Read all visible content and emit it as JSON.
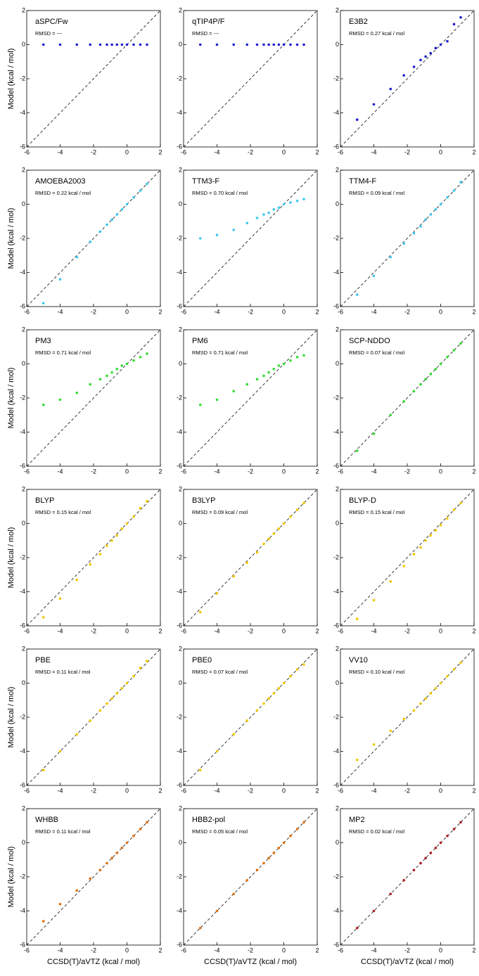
{
  "chart_data": [
    {
      "type": "scatter",
      "title": "aSPC/Fw",
      "annotation": "RMSD = ---",
      "color": "#1e1ed2",
      "y_label": "Model (kcal / mol)",
      "x": [
        -5,
        -4,
        -3,
        -2.2,
        -1.6,
        -1.2,
        -0.9,
        -0.6,
        -0.3,
        0,
        0.4,
        0.8,
        1.2
      ],
      "y": [
        0,
        0,
        0,
        0,
        0,
        0,
        0,
        0,
        0,
        0,
        0,
        0,
        0
      ],
      "xlim": [
        -6,
        2
      ],
      "ylim": [
        -6,
        2
      ],
      "xticks": [
        -6,
        -4,
        -2,
        0,
        2
      ],
      "yticks": [
        -6,
        -4,
        -2,
        0,
        2
      ]
    },
    {
      "type": "scatter",
      "title": "qTIP4P/F",
      "annotation": "RMSD = ---",
      "color": "#1e1ed2",
      "x": [
        -5,
        -4,
        -3,
        -2.2,
        -1.6,
        -1.2,
        -0.9,
        -0.6,
        -0.3,
        0,
        0.4,
        0.8,
        1.2
      ],
      "y": [
        0,
        0,
        0,
        0,
        0,
        0,
        0,
        0,
        0,
        0,
        0,
        0,
        0
      ],
      "xlim": [
        -6,
        2
      ],
      "ylim": [
        -6,
        2
      ],
      "xticks": [
        -6,
        -4,
        -2,
        0,
        2
      ],
      "yticks": [
        -6,
        -4,
        -2,
        0,
        2
      ]
    },
    {
      "type": "scatter",
      "title": "E3B2",
      "annotation": "RMSD = 0.27 kcal / mol",
      "color": "#1e1ed2",
      "x": [
        -5,
        -4,
        -3,
        -2.2,
        -1.6,
        -1.2,
        -0.9,
        -0.6,
        -0.3,
        0,
        0.4,
        0.8,
        1.2
      ],
      "y": [
        -4.4,
        -3.5,
        -2.6,
        -1.8,
        -1.3,
        -0.9,
        -0.7,
        -0.5,
        -0.2,
        0,
        0.2,
        1.2,
        1.6
      ],
      "xlim": [
        -6,
        2
      ],
      "ylim": [
        -6,
        2
      ],
      "xticks": [
        -6,
        -4,
        -2,
        0,
        2
      ],
      "yticks": [
        -6,
        -4,
        -2,
        0,
        2
      ]
    },
    {
      "type": "scatter",
      "title": "AMOEBA2003",
      "annotation": "RMSD = 0.22 kcal / mol",
      "color": "#3cc8f0",
      "y_label": "Model (kcal / mol)",
      "x": [
        -5,
        -4,
        -3,
        -2.2,
        -1.6,
        -1.2,
        -0.9,
        -0.6,
        -0.3,
        0,
        0.4,
        0.8,
        1.2
      ],
      "y": [
        -5.8,
        -4.4,
        -3.1,
        -2.2,
        -1.6,
        -1.2,
        -0.9,
        -0.6,
        -0.3,
        0,
        0.4,
        0.8,
        1.2
      ],
      "xlim": [
        -6,
        2
      ],
      "ylim": [
        -6,
        2
      ],
      "xticks": [
        -6,
        -4,
        -2,
        0,
        2
      ],
      "yticks": [
        -6,
        -4,
        -2,
        0,
        2
      ]
    },
    {
      "type": "scatter",
      "title": "TTM3-F",
      "annotation": "RMSD = 0.70 kcal / mol",
      "color": "#3cc8f0",
      "x": [
        -5,
        -4,
        -3,
        -2.2,
        -1.6,
        -1.2,
        -0.9,
        -0.6,
        -0.3,
        0,
        0.4,
        0.8,
        1.2
      ],
      "y": [
        -2,
        -1.8,
        -1.5,
        -1.1,
        -0.8,
        -0.6,
        -0.5,
        -0.3,
        -0.2,
        0,
        0.1,
        0.2,
        0.3
      ],
      "xlim": [
        -6,
        2
      ],
      "ylim": [
        -6,
        2
      ],
      "xticks": [
        -6,
        -4,
        -2,
        0,
        2
      ],
      "yticks": [
        -6,
        -4,
        -2,
        0,
        2
      ]
    },
    {
      "type": "scatter",
      "title": "TTM4-F",
      "annotation": "RMSD = 0.09 kcal / mol",
      "color": "#3cc8f0",
      "x": [
        -5,
        -4,
        -3,
        -2.2,
        -1.6,
        -1.2,
        -0.9,
        -0.6,
        -0.3,
        0,
        0.4,
        0.8,
        1.2
      ],
      "y": [
        -5.3,
        -4.2,
        -3.1,
        -2.3,
        -1.7,
        -1.3,
        -0.9,
        -0.6,
        -0.3,
        0,
        0.4,
        0.8,
        1.3
      ],
      "xlim": [
        -6,
        2
      ],
      "ylim": [
        -6,
        2
      ],
      "xticks": [
        -6,
        -4,
        -2,
        0,
        2
      ],
      "yticks": [
        -6,
        -4,
        -2,
        0,
        2
      ]
    },
    {
      "type": "scatter",
      "title": "PM3",
      "annotation": "RMSD = 0.71 kcal / mol",
      "color": "#33dd33",
      "y_label": "Model (kcal / mol)",
      "x": [
        -5,
        -4,
        -3,
        -2.2,
        -1.6,
        -1.2,
        -0.9,
        -0.6,
        -0.3,
        0,
        0.4,
        0.8,
        1.2
      ],
      "y": [
        -2.4,
        -2.1,
        -1.7,
        -1.2,
        -0.9,
        -0.7,
        -0.5,
        -0.3,
        -0.1,
        0,
        0.2,
        0.4,
        0.6
      ],
      "xlim": [
        -6,
        2
      ],
      "ylim": [
        -6,
        2
      ],
      "xticks": [
        -6,
        -4,
        -2,
        0,
        2
      ],
      "yticks": [
        -6,
        -4,
        -2,
        0,
        2
      ]
    },
    {
      "type": "scatter",
      "title": "PM6",
      "annotation": "RMSD = 0.71 kcal / mol",
      "color": "#33dd33",
      "x": [
        -5,
        -4,
        -3,
        -2.2,
        -1.6,
        -1.2,
        -0.9,
        -0.6,
        -0.3,
        0,
        0.4,
        0.8,
        1.2
      ],
      "y": [
        -2.4,
        -2.1,
        -1.6,
        -1.2,
        -0.9,
        -0.7,
        -0.5,
        -0.3,
        -0.1,
        0,
        0.2,
        0.4,
        0.5
      ],
      "xlim": [
        -6,
        2
      ],
      "ylim": [
        -6,
        2
      ],
      "xticks": [
        -6,
        -4,
        -2,
        0,
        2
      ],
      "yticks": [
        -6,
        -4,
        -2,
        0,
        2
      ]
    },
    {
      "type": "scatter",
      "title": "SCP-NDDO",
      "annotation": "RMSD = 0.07 kcal / mol",
      "color": "#33dd33",
      "x": [
        -5,
        -4,
        -3,
        -2.2,
        -1.6,
        -1.2,
        -0.9,
        -0.6,
        -0.3,
        0,
        0.4,
        0.8,
        1.2
      ],
      "y": [
        -5.1,
        -4.1,
        -3,
        -2.2,
        -1.6,
        -1.2,
        -0.9,
        -0.6,
        -0.3,
        0,
        0.4,
        0.8,
        1.2
      ],
      "xlim": [
        -6,
        2
      ],
      "ylim": [
        -6,
        2
      ],
      "xticks": [
        -6,
        -4,
        -2,
        0,
        2
      ],
      "yticks": [
        -6,
        -4,
        -2,
        0,
        2
      ]
    },
    {
      "type": "scatter",
      "title": "BLYP",
      "annotation": "RMSD = 0.15 kcal / mol",
      "color": "#f0c800",
      "y_label": "Model (kcal / mol)",
      "x": [
        -5,
        -4,
        -3,
        -2.2,
        -1.6,
        -1.2,
        -0.9,
        -0.6,
        -0.3,
        0,
        0.4,
        0.8,
        1.2
      ],
      "y": [
        -5.5,
        -4.4,
        -3.3,
        -2.4,
        -1.8,
        -1.3,
        -1,
        -0.7,
        -0.3,
        0,
        0.4,
        0.9,
        1.3
      ],
      "xlim": [
        -6,
        2
      ],
      "ylim": [
        -6,
        2
      ],
      "xticks": [
        -6,
        -4,
        -2,
        0,
        2
      ],
      "yticks": [
        -6,
        -4,
        -2,
        0,
        2
      ]
    },
    {
      "type": "scatter",
      "title": "B3LYP",
      "annotation": "RMSD = 0.09 kcal / mol",
      "color": "#f0c800",
      "x": [
        -5,
        -4,
        -3,
        -2.2,
        -1.6,
        -1.2,
        -0.9,
        -0.6,
        -0.3,
        0,
        0.4,
        0.8,
        1.2
      ],
      "y": [
        -5.2,
        -4.1,
        -3.1,
        -2.3,
        -1.7,
        -1.2,
        -0.9,
        -0.6,
        -0.3,
        0,
        0.4,
        0.8,
        1.2
      ],
      "xlim": [
        -6,
        2
      ],
      "ylim": [
        -6,
        2
      ],
      "xticks": [
        -6,
        -4,
        -2,
        0,
        2
      ],
      "yticks": [
        -6,
        -4,
        -2,
        0,
        2
      ]
    },
    {
      "type": "scatter",
      "title": "BLYP-D",
      "annotation": "RMSD = 0.15 kcal / mol",
      "color": "#f0c800",
      "x": [
        -5,
        -4,
        -3,
        -2.2,
        -1.6,
        -1.2,
        -0.9,
        -0.6,
        -0.3,
        0,
        0.4,
        0.8,
        1.2
      ],
      "y": [
        -5.6,
        -4.5,
        -3.4,
        -2.5,
        -1.8,
        -1.4,
        -1,
        -0.7,
        -0.4,
        -0.1,
        0.3,
        0.8,
        1.2
      ],
      "xlim": [
        -6,
        2
      ],
      "ylim": [
        -6,
        2
      ],
      "xticks": [
        -6,
        -4,
        -2,
        0,
        2
      ],
      "yticks": [
        -6,
        -4,
        -2,
        0,
        2
      ]
    },
    {
      "type": "scatter",
      "title": "PBE",
      "annotation": "RMSD = 0.11 kcal / mol",
      "color": "#f0c800",
      "y_label": "Model (kcal / mol)",
      "x": [
        -5,
        -4,
        -3,
        -2.2,
        -1.6,
        -1.2,
        -0.9,
        -0.6,
        -0.3,
        0,
        0.4,
        0.8,
        1.2
      ],
      "y": [
        -5.1,
        -4,
        -3,
        -2.2,
        -1.6,
        -1.2,
        -0.9,
        -0.6,
        -0.3,
        0,
        0.4,
        0.9,
        1.3
      ],
      "xlim": [
        -6,
        2
      ],
      "ylim": [
        -6,
        2
      ],
      "xticks": [
        -6,
        -4,
        -2,
        0,
        2
      ],
      "yticks": [
        -6,
        -4,
        -2,
        0,
        2
      ]
    },
    {
      "type": "scatter",
      "title": "PBE0",
      "annotation": "RMSD = 0.07 kcal / mol",
      "color": "#f0c800",
      "x": [
        -5,
        -4,
        -3,
        -2.2,
        -1.6,
        -1.2,
        -0.9,
        -0.6,
        -0.3,
        0,
        0.4,
        0.8,
        1.2
      ],
      "y": [
        -5.1,
        -4,
        -3,
        -2.2,
        -1.6,
        -1.2,
        -0.9,
        -0.6,
        -0.3,
        0,
        0.4,
        0.8,
        1.1
      ],
      "xlim": [
        -6,
        2
      ],
      "ylim": [
        -6,
        2
      ],
      "xticks": [
        -6,
        -4,
        -2,
        0,
        2
      ],
      "yticks": [
        -6,
        -4,
        -2,
        0,
        2
      ]
    },
    {
      "type": "scatter",
      "title": "VV10",
      "annotation": "RMSD = 0.10 kcal / mol",
      "color": "#f0c800",
      "x": [
        -5,
        -4,
        -3,
        -2.2,
        -1.6,
        -1.2,
        -0.9,
        -0.6,
        -0.3,
        0,
        0.4,
        0.8,
        1.2
      ],
      "y": [
        -4.5,
        -3.6,
        -2.8,
        -2.1,
        -1.6,
        -1.2,
        -0.9,
        -0.6,
        -0.3,
        0,
        0.4,
        0.8,
        1.2
      ],
      "xlim": [
        -6,
        2
      ],
      "ylim": [
        -6,
        2
      ],
      "xticks": [
        -6,
        -4,
        -2,
        0,
        2
      ],
      "yticks": [
        -6,
        -4,
        -2,
        0,
        2
      ]
    },
    {
      "type": "scatter",
      "title": "WHBB",
      "annotation": "RMSD = 0.11 kcal / mol",
      "color": "#e07010",
      "y_label": "Model (kcal / mol)",
      "x_label": "CCSD(T)/aVTZ (kcal / mol)",
      "x": [
        -5,
        -4,
        -3,
        -2.2,
        -1.6,
        -1.2,
        -0.9,
        -0.6,
        -0.3,
        0,
        0.4,
        0.8,
        1.2
      ],
      "y": [
        -4.6,
        -3.6,
        -2.8,
        -2.1,
        -1.6,
        -1.2,
        -0.9,
        -0.6,
        -0.3,
        0,
        0.4,
        0.8,
        1.2
      ],
      "xlim": [
        -6,
        2
      ],
      "ylim": [
        -6,
        2
      ],
      "xticks": [
        -6,
        -4,
        -2,
        0,
        2
      ],
      "yticks": [
        -6,
        -4,
        -2,
        0,
        2
      ]
    },
    {
      "type": "scatter",
      "title": "HBB2-pol",
      "annotation": "RMSD = 0.05 kcal / mol",
      "color": "#e07010",
      "x_label": "CCSD(T)/aVTZ (kcal / mol)",
      "x": [
        -5,
        -4,
        -3,
        -2.2,
        -1.6,
        -1.2,
        -0.9,
        -0.6,
        -0.3,
        0,
        0.4,
        0.8,
        1.2
      ],
      "y": [
        -5,
        -4,
        -3,
        -2.2,
        -1.6,
        -1.2,
        -0.9,
        -0.6,
        -0.3,
        0,
        0.4,
        0.8,
        1.2
      ],
      "xlim": [
        -6,
        2
      ],
      "ylim": [
        -6,
        2
      ],
      "xticks": [
        -6,
        -4,
        -2,
        0,
        2
      ],
      "yticks": [
        -6,
        -4,
        -2,
        0,
        2
      ]
    },
    {
      "type": "scatter",
      "title": "MP2",
      "annotation": "RMSD = 0.02 kcal / mol",
      "color": "#b01e1e",
      "x_label": "CCSD(T)/aVTZ (kcal / mol)",
      "x": [
        -5,
        -4,
        -3,
        -2.2,
        -1.6,
        -1.2,
        -0.9,
        -0.6,
        -0.3,
        0,
        0.4,
        0.8,
        1.2
      ],
      "y": [
        -5,
        -4,
        -3,
        -2.2,
        -1.6,
        -1.2,
        -0.9,
        -0.6,
        -0.3,
        0,
        0.4,
        0.8,
        1.2
      ],
      "xlim": [
        -6,
        2
      ],
      "ylim": [
        -6,
        2
      ],
      "xticks": [
        -6,
        -4,
        -2,
        0,
        2
      ],
      "yticks": [
        -6,
        -4,
        -2,
        0,
        2
      ]
    }
  ]
}
